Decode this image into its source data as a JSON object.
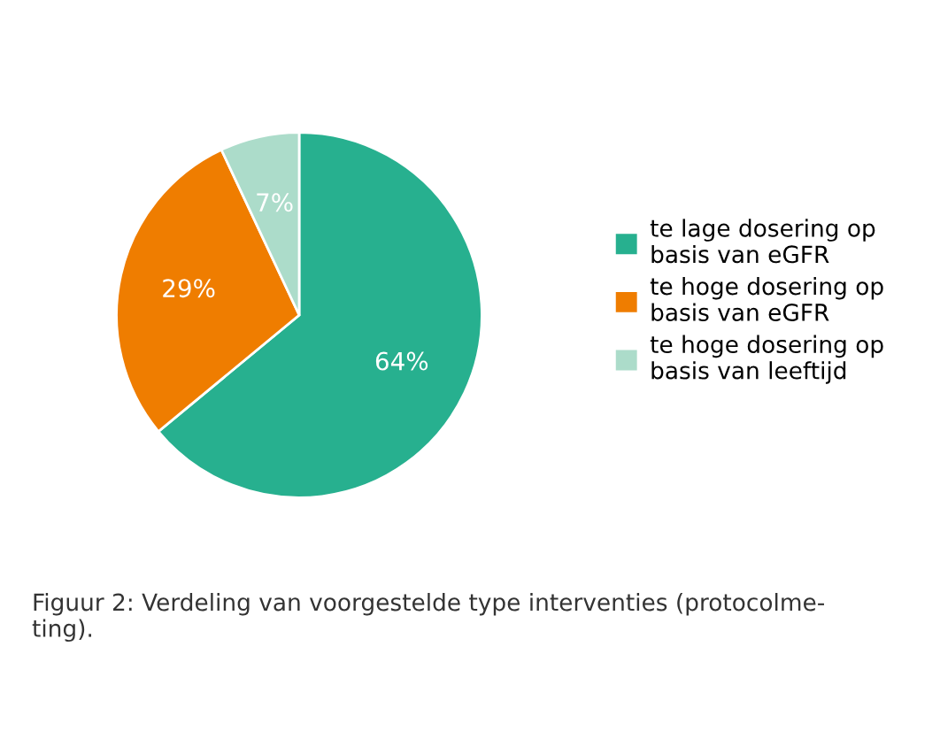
{
  "chart_data": {
    "type": "pie",
    "categories": [
      "te lage dosering op\nbasis van eGFR",
      "te hoge dosering op\nbasis van eGFR",
      "te hoge dosering op\nbasis van leeftijd"
    ],
    "values": [
      64,
      29,
      7
    ],
    "colors": [
      "#27b08f",
      "#ef7d00",
      "#acdcca"
    ],
    "value_labels": [
      "64%",
      "29%",
      "7%"
    ],
    "legend": "right",
    "annotations": [
      "Figuur 2: Verdeling van voorgestelde type interventies (protocolme-\nting)."
    ]
  }
}
